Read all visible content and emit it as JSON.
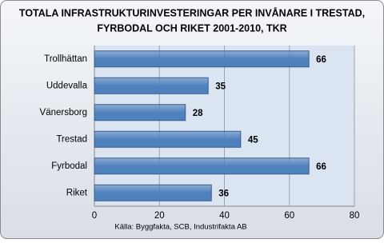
{
  "chart_data": {
    "type": "bar",
    "orientation": "horizontal",
    "title": [
      "TOTALA INFRASTRUKTURINVESTERINGAR PER INVÅNARE I TRESTAD,",
      "FYRBODAL OCH RIKET 2001-2010,  TKR"
    ],
    "categories": [
      "Trollhättan",
      "Uddevalla",
      "Vänersborg",
      "Trestad",
      "Fyrbodal",
      "Riket"
    ],
    "values": [
      66,
      35,
      28,
      45,
      66,
      36
    ],
    "color": "#4f81bd",
    "xlim": [
      0,
      80
    ],
    "xticks": [
      0,
      20,
      40,
      60,
      80
    ],
    "grid": true,
    "source": "Källa: Byggfakta, SCB, Industrifakta AB"
  }
}
